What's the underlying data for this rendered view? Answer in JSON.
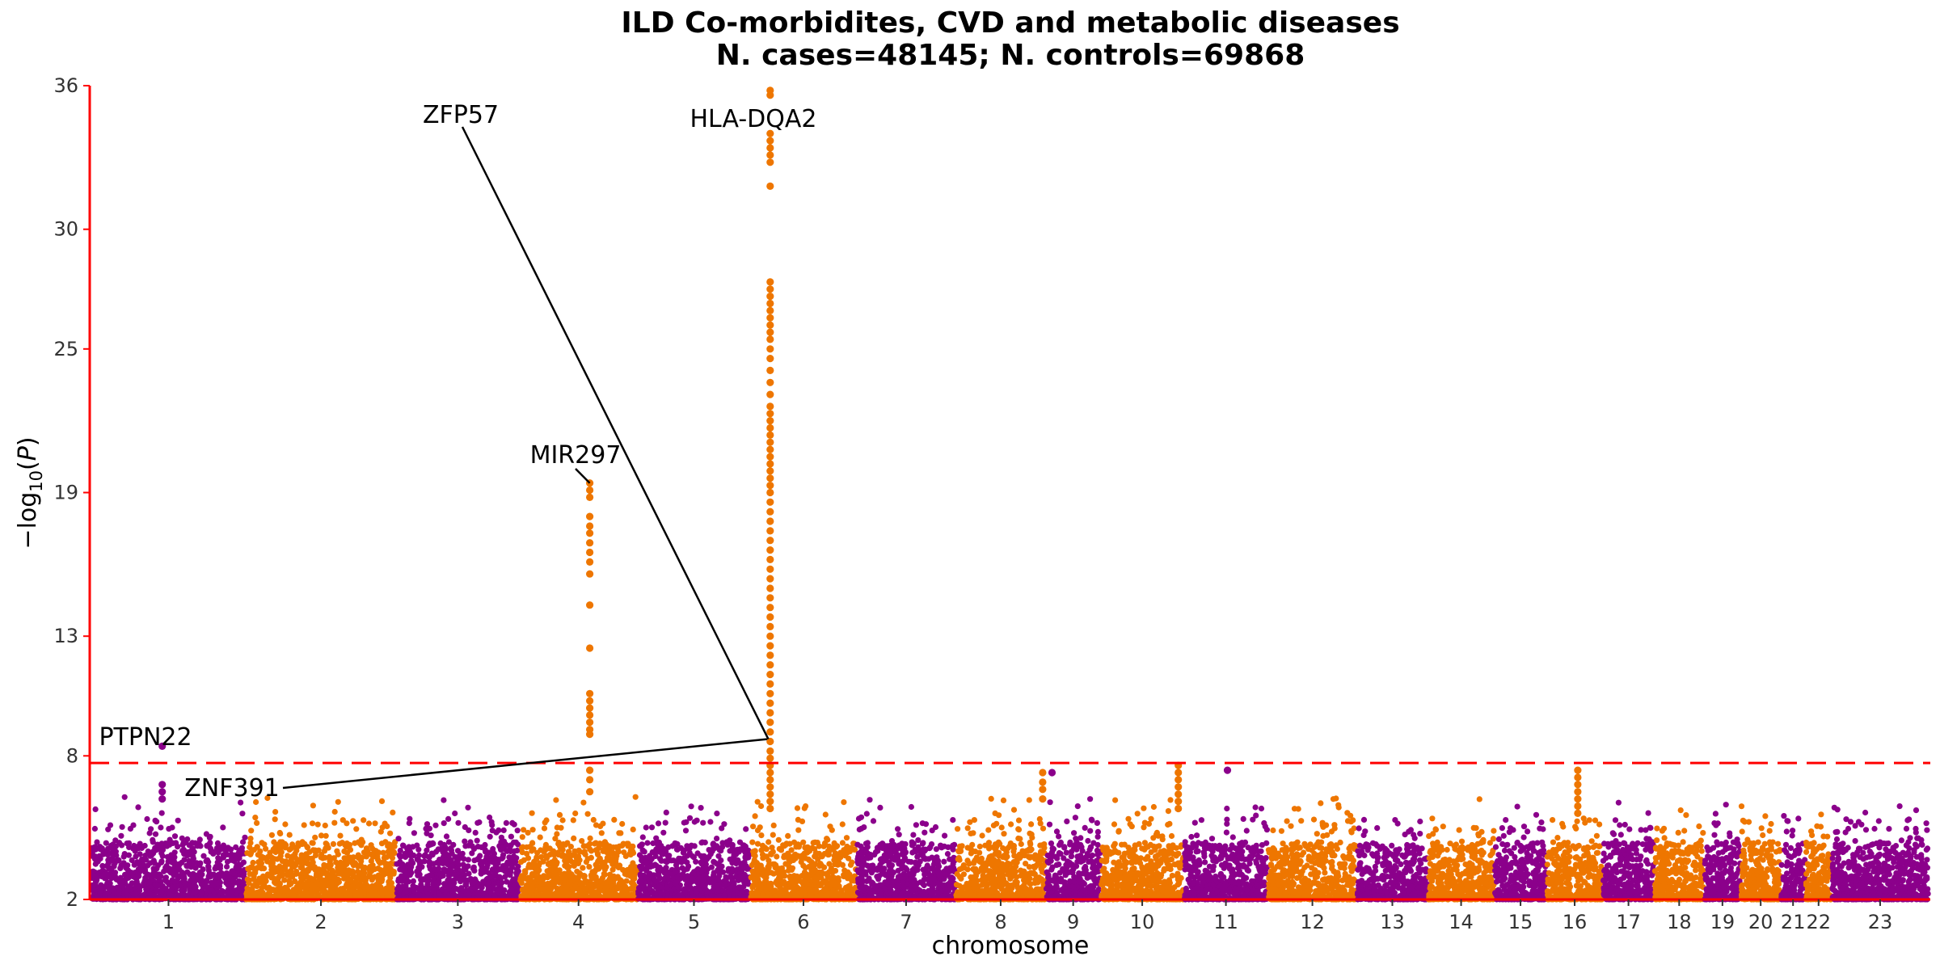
{
  "chart_data": {
    "type": "scatter",
    "title": "ILD Co-morbidites, CVD and metabolic diseases",
    "subtitle": "N. cases=48145; N. controls=69868",
    "xlabel": "chromosome",
    "ylabel": "−log10(P)",
    "ylim": [
      2,
      36
    ],
    "yticks": [
      2,
      8,
      13,
      19,
      25,
      30,
      36
    ],
    "significance_threshold": 7.7,
    "colors": {
      "odd": "#8B008B",
      "even": "#EE7600",
      "threshold": "#FF0000",
      "axis": "#FF0000"
    },
    "chromosomes": [
      {
        "label": "1",
        "len": 248
      },
      {
        "label": "2",
        "len": 242
      },
      {
        "label": "3",
        "len": 198
      },
      {
        "label": "4",
        "len": 190
      },
      {
        "label": "5",
        "len": 181
      },
      {
        "label": "6",
        "len": 171
      },
      {
        "label": "7",
        "len": 159
      },
      {
        "label": "8",
        "len": 145
      },
      {
        "label": "9",
        "len": 88
      },
      {
        "label": "10",
        "len": 134
      },
      {
        "label": "11",
        "len": 135
      },
      {
        "label": "12",
        "len": 143
      },
      {
        "label": "13",
        "len": 114
      },
      {
        "label": "14",
        "len": 107
      },
      {
        "label": "15",
        "len": 84
      },
      {
        "label": "16",
        "len": 90
      },
      {
        "label": "17",
        "len": 83
      },
      {
        "label": "18",
        "len": 80
      },
      {
        "label": "19",
        "len": 59
      },
      {
        "label": "20",
        "len": 64
      },
      {
        "label": "21",
        "len": 40
      },
      {
        "label": "22",
        "len": 42
      },
      {
        "label": "23",
        "len": 156
      }
    ],
    "annotations": [
      {
        "gene": "PTPN22",
        "chr": "1",
        "pos": 114,
        "y": 8.4
      },
      {
        "gene": "ZNF391",
        "chr": "6",
        "pos": 27,
        "y": 8.7
      },
      {
        "gene": "ZFP57",
        "chr": "6",
        "pos": 29,
        "y": 8.7
      },
      {
        "gene": "MIR297",
        "chr": "4",
        "pos": 113,
        "y": 19.4
      },
      {
        "gene": "HLA-DQA2",
        "chr": "6",
        "pos": 32,
        "y": 35.8
      }
    ],
    "peaks": [
      {
        "chr": "1",
        "pos": 114,
        "values": [
          8.4,
          6.8,
          6.5,
          6.2
        ]
      },
      {
        "chr": "4",
        "pos": 113,
        "values": [
          19.4,
          19.1,
          18.8,
          18.0,
          17.6,
          17.3,
          16.9,
          16.5,
          16.1,
          15.6,
          14.3,
          12.5,
          10.6,
          10.3,
          10.0,
          9.7,
          9.4,
          9.1,
          8.9,
          7.4,
          7.0,
          6.5
        ]
      },
      {
        "chr": "6",
        "pos": 32,
        "values": [
          35.8,
          35.6,
          34.0,
          33.7,
          33.4,
          33.1,
          32.8,
          31.8,
          27.8,
          27.5,
          27.2,
          26.9,
          26.6,
          26.3,
          26.0,
          25.7,
          25.4,
          25.0,
          24.6,
          24.1,
          23.6,
          23.1,
          22.6,
          22.3,
          22.0,
          21.7,
          21.4,
          21.1,
          20.8,
          20.5,
          20.2,
          19.9,
          19.6,
          19.3,
          19.0,
          18.6,
          18.2,
          17.8,
          17.4,
          17.0,
          16.6,
          16.2,
          15.8,
          15.4,
          15.0,
          14.6,
          14.2,
          13.8,
          13.4,
          13.0,
          12.6,
          12.2,
          11.8,
          11.4,
          11.0,
          10.6,
          10.2,
          9.8,
          9.4,
          9.0,
          8.6,
          8.2,
          7.9,
          7.6,
          7.3,
          7.0,
          6.7,
          6.4,
          6.1,
          5.8
        ]
      },
      {
        "chr": "8",
        "pos": 140,
        "values": [
          7.3,
          6.9,
          6.6,
          6.2
        ]
      },
      {
        "chr": "9",
        "pos": 10,
        "values": [
          7.3
        ]
      },
      {
        "chr": "10",
        "pos": 125,
        "values": [
          7.6,
          7.3,
          7.0,
          6.7,
          6.4,
          6.1,
          5.8
        ]
      },
      {
        "chr": "11",
        "pos": 70,
        "values": [
          7.4
        ]
      },
      {
        "chr": "16",
        "pos": 50,
        "values": [
          7.4,
          7.1,
          6.8,
          6.5,
          6.2,
          5.9,
          5.6
        ]
      }
    ]
  }
}
